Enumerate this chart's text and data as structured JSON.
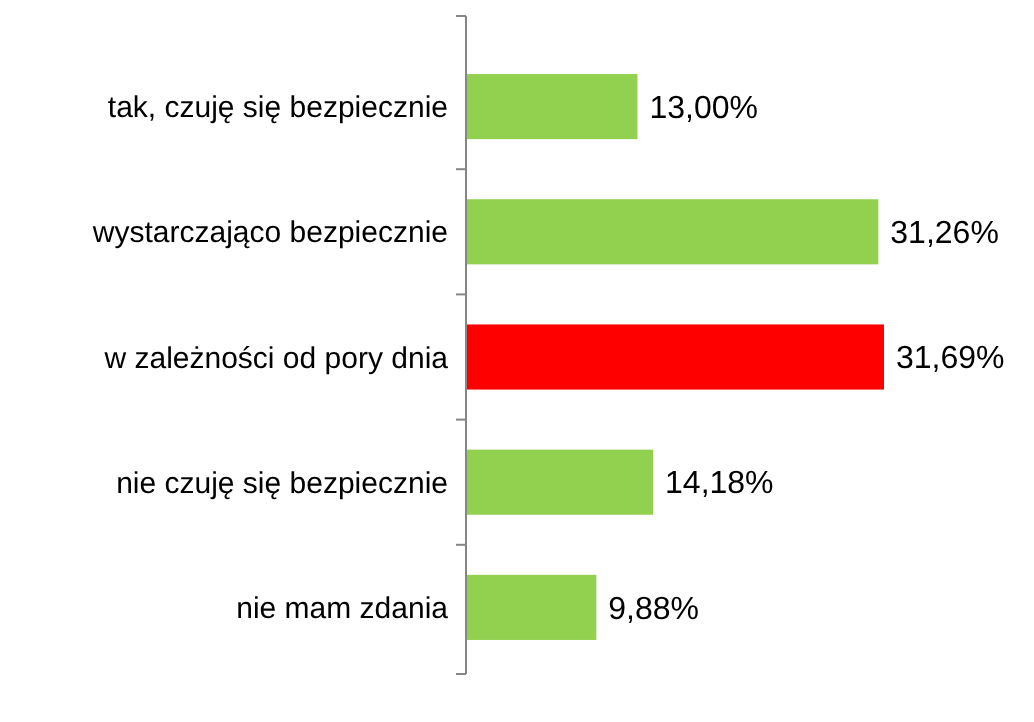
{
  "chart_data": {
    "type": "bar",
    "orientation": "horizontal",
    "categories": [
      "tak, czuję się bezpiecznie",
      "wystarczająco bezpiecznie",
      "w zależności od pory dnia",
      "nie czuję się bezpiecznie",
      "nie mam zdania"
    ],
    "values": [
      13.0,
      31.26,
      31.69,
      14.18,
      9.88
    ],
    "colors": [
      "#92d050",
      "#92d050",
      "#ff0000",
      "#92d050",
      "#92d050"
    ],
    "value_labels": [
      "13,00%",
      "31,26%",
      "31,69%",
      "14,18%",
      "9,88%"
    ]
  }
}
